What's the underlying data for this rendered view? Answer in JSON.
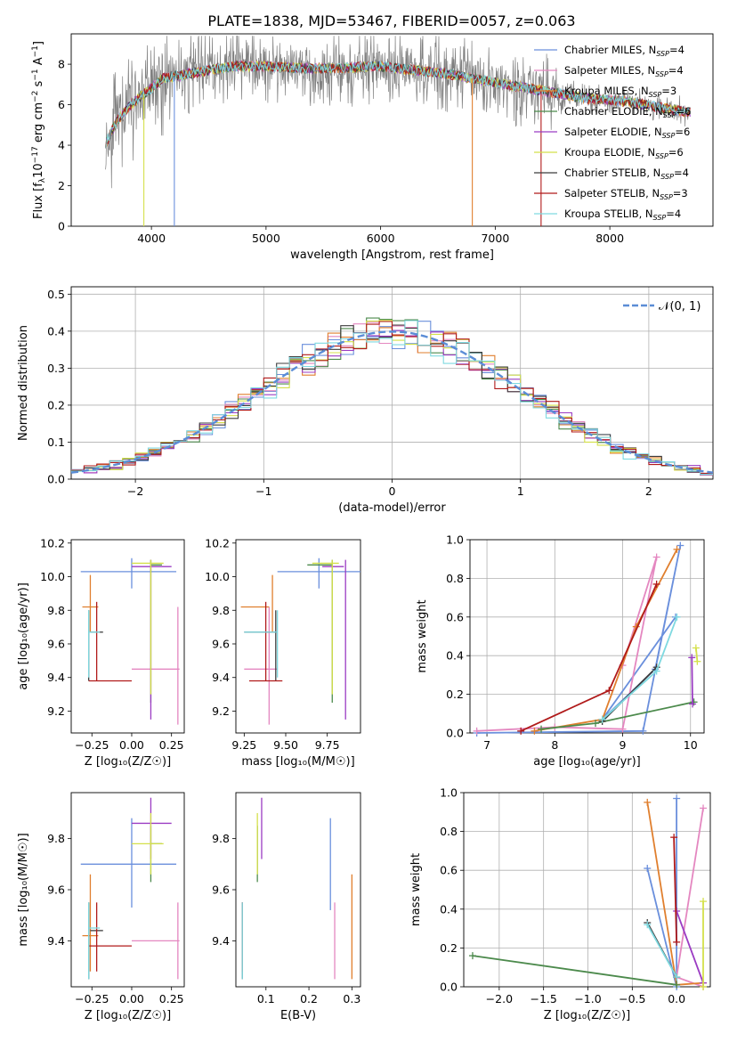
{
  "title": "PLATE=1838, MJD=53467, FIBERID=0057, z=0.063",
  "colors": {
    "Chabrier MILES": "#6a8fdc",
    "Salpeter MILES": "#e487c0",
    "Kroupa MILES": "#e07f2e",
    "Chabrier ELODIE": "#4c8a4c",
    "Salpeter ELODIE": "#9b3cc3",
    "Kroupa ELODIE": "#d4e04a",
    "Chabrier STELIB": "#3c3c3c",
    "Salpeter STELIB": "#b01a1a",
    "Kroupa STELIB": "#7fd9e0",
    "data": "#808080",
    "normal": "#5b8dd6"
  },
  "chart_data": [
    {
      "panel": "spectrum",
      "type": "line",
      "xlabel": "wavelength [Angstrom, rest frame]",
      "ylabel_main": "Flux [f",
      "ylabel_sub": "λ",
      "ylabel_rest": "10",
      "ylabel_exp1": "−17",
      "ylabel_mid": " erg cm",
      "ylabel_exp2": "−2",
      "ylabel_mid2": " s",
      "ylabel_exp3": "−1",
      "ylabel_mid3": " A",
      "ylabel_exp4": "−1",
      "ylabel_end": "]",
      "xlim": [
        3300,
        8900
      ],
      "ylim": [
        0,
        9.5
      ],
      "xticks": [
        "4000",
        "5000",
        "6000",
        "7000",
        "8000"
      ],
      "yticks": [
        "0",
        "2",
        "4",
        "6",
        "8"
      ],
      "legend_position": "top-right",
      "legend": [
        {
          "name": "Chabrier MILES",
          "n": "4"
        },
        {
          "name": "Salpeter MILES",
          "n": "4"
        },
        {
          "name": "Kroupa MILES",
          "n": "3"
        },
        {
          "name": "Chabrier ELODIE",
          "n": "6"
        },
        {
          "name": "Salpeter ELODIE",
          "n": "6"
        },
        {
          "name": "Kroupa ELODIE",
          "n": "6"
        },
        {
          "name": "Chabrier STELIB",
          "n": "4"
        },
        {
          "name": "Salpeter STELIB",
          "n": "3"
        },
        {
          "name": "Kroupa STELIB",
          "n": "4"
        }
      ],
      "legend_suffix": "N",
      "legend_sub": "SSP",
      "continuum_points": [
        [
          3600,
          4.1
        ],
        [
          3700,
          5.2
        ],
        [
          3800,
          5.9
        ],
        [
          3900,
          6.4
        ],
        [
          4000,
          6.8
        ],
        [
          4100,
          7.3
        ],
        [
          4300,
          7.5
        ],
        [
          4500,
          7.7
        ],
        [
          4700,
          7.9
        ],
        [
          5000,
          7.9
        ],
        [
          5300,
          7.8
        ],
        [
          5600,
          7.8
        ],
        [
          6000,
          7.9
        ],
        [
          6300,
          7.7
        ],
        [
          6600,
          7.5
        ],
        [
          6900,
          7.2
        ],
        [
          7200,
          6.9
        ],
        [
          7500,
          6.6
        ],
        [
          7800,
          6.3
        ],
        [
          8100,
          6.2
        ],
        [
          8400,
          5.9
        ],
        [
          8700,
          5.6
        ]
      ]
    },
    {
      "panel": "histogram",
      "type": "line",
      "xlabel": "(data-model)/error",
      "ylabel": "Normed distribution",
      "xlim": [
        -2.5,
        2.5
      ],
      "ylim": [
        0,
        0.52
      ],
      "xticks": [
        "−2",
        "−1",
        "0",
        "1",
        "2"
      ],
      "yticks": [
        "0.0",
        "0.1",
        "0.2",
        "0.3",
        "0.4",
        "0.5"
      ],
      "grid": true,
      "legend_position": "top-right",
      "legend_label": "𝒩(0, 1)",
      "bin_width": 0.1
    },
    {
      "panel": "Z-age",
      "type": "scatter",
      "xlabel": "Z [log₁₀(Z/Z☉)]",
      "ylabel": "age  [log₁₀(age/yr)]",
      "xlim": [
        -0.38,
        0.33
      ],
      "ylim": [
        9.07,
        10.22
      ],
      "xticks": [
        "−0.25",
        "0.00",
        "0.25"
      ],
      "yticks": [
        "9.2",
        "9.4",
        "9.6",
        "9.8",
        "10.0",
        "10.2"
      ]
    },
    {
      "panel": "mass-age",
      "type": "scatter",
      "xlabel": "mass [log₁₀(M/M☉)]",
      "ylabel": "",
      "xlim": [
        9.2,
        9.95
      ],
      "ylim": [
        9.07,
        10.22
      ],
      "xticks": [
        "9.25",
        "9.50",
        "9.75"
      ],
      "yticks": [
        "9.2",
        "9.4",
        "9.6",
        "9.8",
        "10.0",
        "10.2"
      ]
    },
    {
      "panel": "age-weight",
      "type": "line",
      "xlabel": "age  [log₁₀(age/yr)]",
      "ylabel": "mass weight",
      "xlim": [
        6.75,
        10.2
      ],
      "ylim": [
        0,
        1
      ],
      "xticks": [
        "7",
        "8",
        "9",
        "10"
      ],
      "yticks": [
        "0.0",
        "0.2",
        "0.4",
        "0.6",
        "0.8",
        "1.0"
      ],
      "grid": true
    },
    {
      "panel": "Z-mass",
      "type": "scatter",
      "xlabel": "Z [log₁₀(Z/Z☉)]",
      "ylabel": "mass [log₁₀(M/M☉)]",
      "xlim": [
        -0.38,
        0.33
      ],
      "ylim": [
        9.22,
        9.98
      ],
      "xticks": [
        "−0.25",
        "0.00",
        "0.25"
      ],
      "yticks": [
        "9.4",
        "9.6",
        "9.8"
      ]
    },
    {
      "panel": "EBV-mass",
      "type": "scatter",
      "xlabel": "E(B-V)",
      "ylabel": "",
      "xlim": [
        0.03,
        0.32
      ],
      "ylim": [
        9.22,
        9.98
      ],
      "xticks": [
        "0.1",
        "0.2",
        "0.3"
      ],
      "yticks": [
        "9.4",
        "9.6",
        "9.8"
      ]
    },
    {
      "panel": "Z-weight",
      "type": "line",
      "xlabel": "Z [log₁₀(Z/Z☉)]",
      "ylabel": "mass weight",
      "xlim": [
        -2.4,
        0.38
      ],
      "ylim": [
        0,
        1
      ],
      "xticks": [
        "−2.0",
        "−1.5",
        "−1.0",
        "−0.5",
        "0.0"
      ],
      "yticks": [
        "0.0",
        "0.2",
        "0.4",
        "0.6",
        "0.8",
        "1.0"
      ],
      "grid": true
    }
  ],
  "fits": [
    {
      "name": "Chabrier MILES",
      "Z": [
        -0.32,
        0.28,
        0.0
      ],
      "age": [
        10.03,
        9.93,
        10.11
      ],
      "mass": [
        9.45,
        9.95,
        9.7,
        9.53,
        9.88
      ],
      "ebv": [
        0.25,
        9.52,
        9.88
      ],
      "ages": [
        [
          6.85,
          0.0
        ],
        [
          9.3,
          0.01
        ],
        [
          9.85,
          0.97
        ],
        [
          9.48,
          0.33
        ],
        [
          8.7,
          0.07
        ],
        [
          9.78,
          0.6
        ]
      ],
      "Zs": [
        [
          0.0,
          0.97
        ],
        [
          0.0,
          0.0
        ],
        [
          -0.33,
          0.61
        ]
      ]
    },
    {
      "name": "Salpeter MILES",
      "Z": [
        0.0,
        0.3,
        0.29
      ],
      "age": [
        9.45,
        9.12,
        9.82
      ],
      "mass": [
        9.25,
        9.45,
        9.4,
        9.25,
        9.55
      ],
      "ebv": [
        0.26,
        9.25,
        9.55
      ],
      "ages": [
        [
          6.85,
          0.01
        ],
        [
          8.0,
          0.03
        ],
        [
          9.0,
          0.02
        ],
        [
          9.5,
          0.91
        ],
        [
          9.0,
          0.35
        ]
      ],
      "Zs": [
        [
          0.3,
          0.92
        ],
        [
          0.0,
          0.05
        ],
        [
          0.3,
          0.0
        ]
      ]
    },
    {
      "name": "Kroupa MILES",
      "Z": [
        -0.31,
        -0.21,
        -0.26
      ],
      "age": [
        9.82,
        9.67,
        10.01
      ],
      "mass": [
        9.23,
        9.4,
        9.42,
        9.28,
        9.66
      ],
      "ebv": [
        0.3,
        9.25,
        9.66
      ],
      "ages": [
        [
          7.7,
          0.01
        ],
        [
          8.7,
          0.07
        ],
        [
          9.2,
          0.55
        ],
        [
          9.8,
          0.95
        ]
      ],
      "Zs": [
        [
          -0.33,
          0.95
        ],
        [
          0.0,
          0.01
        ],
        [
          0.3,
          0.02
        ]
      ]
    },
    {
      "name": "Chabrier ELODIE",
      "Z": [
        0.12,
        0.19,
        0.12
      ],
      "age": [
        10.07,
        9.25,
        10.1
      ],
      "mass": [
        9.63,
        9.78,
        9.78,
        9.63,
        9.85
      ],
      "ebv": [
        0.08,
        9.63,
        9.85
      ],
      "ages": [
        [
          7.8,
          0.02
        ],
        [
          8.6,
          0.05
        ],
        [
          10.05,
          0.16
        ]
      ],
      "Zs": [
        [
          -2.3,
          0.16
        ],
        [
          0.0,
          0.01
        ]
      ]
    },
    {
      "name": "Salpeter ELODIE",
      "Z": [
        0.0,
        0.25,
        0.12
      ],
      "age": [
        10.06,
        9.15,
        10.1
      ],
      "mass": [
        9.72,
        9.85,
        9.86,
        9.72,
        9.96
      ],
      "ebv": [
        0.09,
        9.72,
        9.96
      ],
      "ages": [
        [
          10.02,
          0.39
        ],
        [
          10.03,
          0.15
        ]
      ],
      "Zs": [
        [
          0.0,
          0.39
        ],
        [
          0.3,
          0.02
        ]
      ]
    },
    {
      "name": "Kroupa ELODIE",
      "Z": [
        0.0,
        0.2,
        0.12
      ],
      "age": [
        10.08,
        9.3,
        10.1
      ],
      "mass": [
        9.66,
        9.82,
        9.78,
        9.66,
        9.9
      ],
      "ebv": [
        0.08,
        9.66,
        9.9
      ],
      "ages": [
        [
          10.08,
          0.44
        ],
        [
          10.1,
          0.37
        ]
      ],
      "Zs": [
        [
          0.3,
          0.44
        ],
        [
          0.3,
          0.0
        ]
      ]
    },
    {
      "name": "Chabrier STELIB",
      "Z": [
        -0.26,
        -0.18,
        -0.27
      ],
      "age": [
        9.67,
        9.38,
        9.8
      ],
      "mass": [
        9.25,
        9.45,
        9.44,
        9.25,
        9.55
      ],
      "ebv": [
        0.045,
        9.25,
        9.55
      ],
      "ages": [
        [
          8.7,
          0.06
        ],
        [
          9.5,
          0.34
        ]
      ],
      "Zs": [
        [
          -0.33,
          0.33
        ],
        [
          0.0,
          0.05
        ]
      ]
    },
    {
      "name": "Salpeter STELIB",
      "Z": [
        -0.27,
        0.0,
        -0.22
      ],
      "age": [
        9.38,
        9.38,
        9.85
      ],
      "mass": [
        9.28,
        9.48,
        9.38,
        9.28,
        9.55
      ],
      "ebv": [
        0.045,
        9.28,
        9.55
      ],
      "ages": [
        [
          7.5,
          0.01
        ],
        [
          8.8,
          0.22
        ],
        [
          9.5,
          0.77
        ]
      ],
      "Zs": [
        [
          -0.03,
          0.77
        ],
        [
          0.0,
          0.23
        ]
      ]
    },
    {
      "name": "Kroupa STELIB",
      "Z": [
        -0.27,
        -0.2,
        -0.27
      ],
      "age": [
        9.67,
        9.4,
        9.8
      ],
      "mass": [
        9.25,
        9.45,
        9.45,
        9.25,
        9.55
      ],
      "ebv": [
        0.045,
        9.25,
        9.55
      ],
      "ages": [
        [
          8.7,
          0.07
        ],
        [
          9.5,
          0.32
        ],
        [
          9.8,
          0.6
        ]
      ],
      "Zs": [
        [
          -0.33,
          0.32
        ],
        [
          0.0,
          0.05
        ]
      ]
    }
  ]
}
